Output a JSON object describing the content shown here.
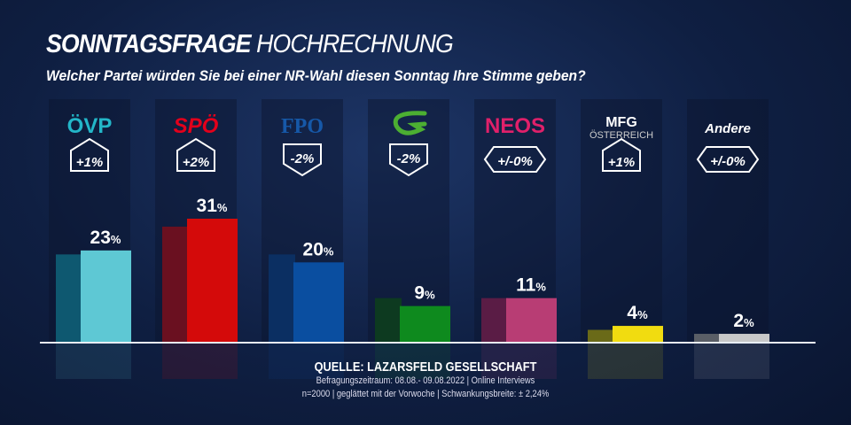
{
  "title_bold": "SONNTAGSFRAGE",
  "title_light": "HOCHRECHNUNG",
  "subtitle": "Welcher Partei würden Sie bei einer NR-Wahl diesen Sonntag Ihre Stimme geben?",
  "source": {
    "line1": "QUELLE:  LAZARSFELD GESELLSCHAFT",
    "line2": "Befragungszeitraum: 08.08.- 09.08.2022 | Online Interviews",
    "line3": "n=2000 | geglättet mit der Vorwoche |  Schwankungsbreite: ± 2,24%"
  },
  "chart_data": {
    "type": "bar",
    "categories": [
      "ÖVP",
      "SPÖ",
      "FPÖ",
      "Grüne",
      "NEOS",
      "MFG Österreich",
      "Andere"
    ],
    "logo_labels": [
      "ÖVP",
      "SPÖ",
      "FPO",
      "",
      "NEOS",
      "MFG ÖSTERREICH",
      "Andere"
    ],
    "values": [
      23,
      31,
      20,
      9,
      11,
      4,
      2
    ],
    "value_labels": [
      "23",
      "31",
      "20",
      "9",
      "11",
      "4",
      "2"
    ],
    "unit": "%",
    "changes": [
      "+1%",
      "+2%",
      "-2%",
      "-2%",
      "+/-0%",
      "+1%",
      "+/-0%"
    ],
    "change_direction": [
      "up",
      "up",
      "down",
      "down",
      "same",
      "up",
      "same"
    ],
    "previous_values": [
      22,
      29,
      22,
      11,
      11,
      3,
      2
    ],
    "colors": [
      "#5ec8d4",
      "#d40a0a",
      "#0a4ea0",
      "#0e8a1e",
      "#b83d74",
      "#f1dc10",
      "#c8c8c8"
    ],
    "previous_colors": [
      "#0e5870",
      "#6a1020",
      "#0b2f62",
      "#0d3a20",
      "#5a1c45",
      "#6a6a18",
      "#5a5e66"
    ],
    "logo_colors": [
      "#23b6c8",
      "#e3001b",
      "#1658a8",
      "#4caf32",
      "#e0206a",
      "#ffffff",
      "#ffffff"
    ],
    "ylim": [
      0,
      35
    ]
  }
}
